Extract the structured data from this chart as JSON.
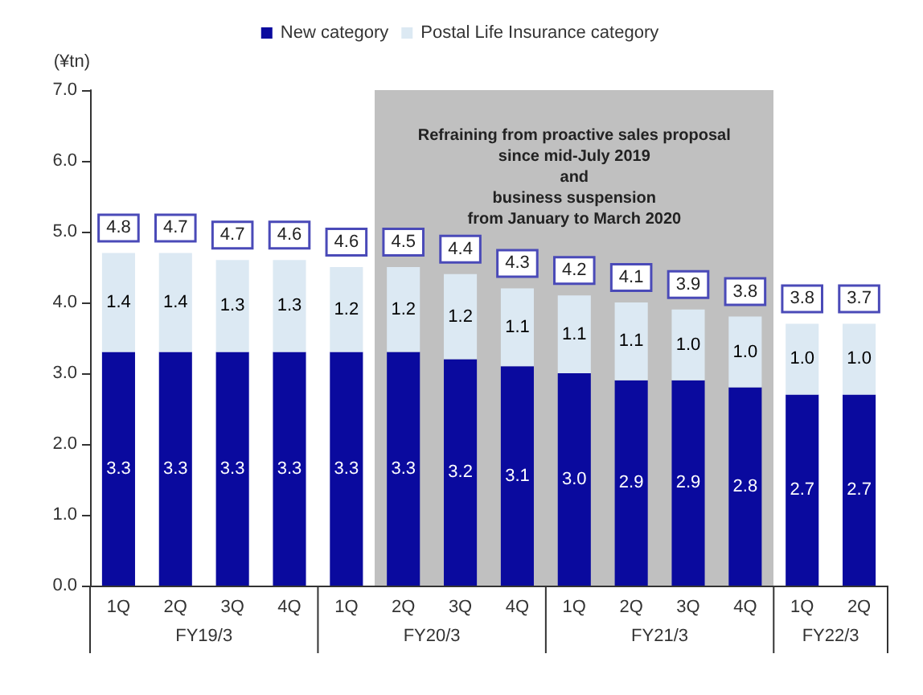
{
  "chart_data": {
    "type": "bar",
    "stacked": true,
    "ylabel": "(¥tn)",
    "categories": [
      "1Q",
      "2Q",
      "3Q",
      "4Q",
      "1Q",
      "2Q",
      "3Q",
      "4Q",
      "1Q",
      "2Q",
      "3Q",
      "4Q",
      "1Q",
      "2Q"
    ],
    "series": [
      {
        "name": "New category",
        "color": "#0a0a9e",
        "values": [
          3.3,
          3.3,
          3.3,
          3.3,
          3.3,
          3.3,
          3.2,
          3.1,
          3.0,
          2.9,
          2.9,
          2.8,
          2.7,
          2.7
        ],
        "value_labels": [
          "3.3",
          "3.3",
          "3.3",
          "3.3",
          "3.3",
          "3.3",
          "3.2",
          "3.1",
          "3.0",
          "2.9",
          "2.9",
          "2.8",
          "2.7",
          "2.7"
        ]
      },
      {
        "name": "Postal Life Insurance category",
        "color": "#dce9f3",
        "values": [
          1.4,
          1.4,
          1.3,
          1.3,
          1.2,
          1.2,
          1.2,
          1.1,
          1.1,
          1.1,
          1.0,
          1.0,
          1.0,
          1.0
        ],
        "value_labels": [
          "1.4",
          "1.4",
          "1.3",
          "1.3",
          "1.2",
          "1.2",
          "1.2",
          "1.1",
          "1.1",
          "1.1",
          "1.0",
          "1.0",
          "1.0",
          "1.0"
        ]
      }
    ],
    "totals": [
      "4.8",
      "4.7",
      "4.7",
      "4.6",
      "4.6",
      "4.5",
      "4.4",
      "4.3",
      "4.2",
      "4.1",
      "3.9",
      "3.8",
      "3.8",
      "3.7"
    ],
    "ylim": [
      0,
      7
    ],
    "yticks": [
      {
        "value": 0,
        "label": "0.0"
      },
      {
        "value": 1,
        "label": "1.0"
      },
      {
        "value": 2,
        "label": "2.0"
      },
      {
        "value": 3,
        "label": "3.0"
      },
      {
        "value": 4,
        "label": "4.0"
      },
      {
        "value": 5,
        "label": "5.0"
      },
      {
        "value": 6,
        "label": "6.0"
      },
      {
        "value": 7,
        "label": "7.0"
      }
    ],
    "annotations": [
      "FY19/3",
      "FY20/3",
      "FY21/3",
      "FY22/3",
      "Refraining from proactive sales proposal\nsince mid-July 2019\nand\nbusiness suspension\nfrom January to March 2020"
    ],
    "grid": false,
    "legend": "top"
  }
}
